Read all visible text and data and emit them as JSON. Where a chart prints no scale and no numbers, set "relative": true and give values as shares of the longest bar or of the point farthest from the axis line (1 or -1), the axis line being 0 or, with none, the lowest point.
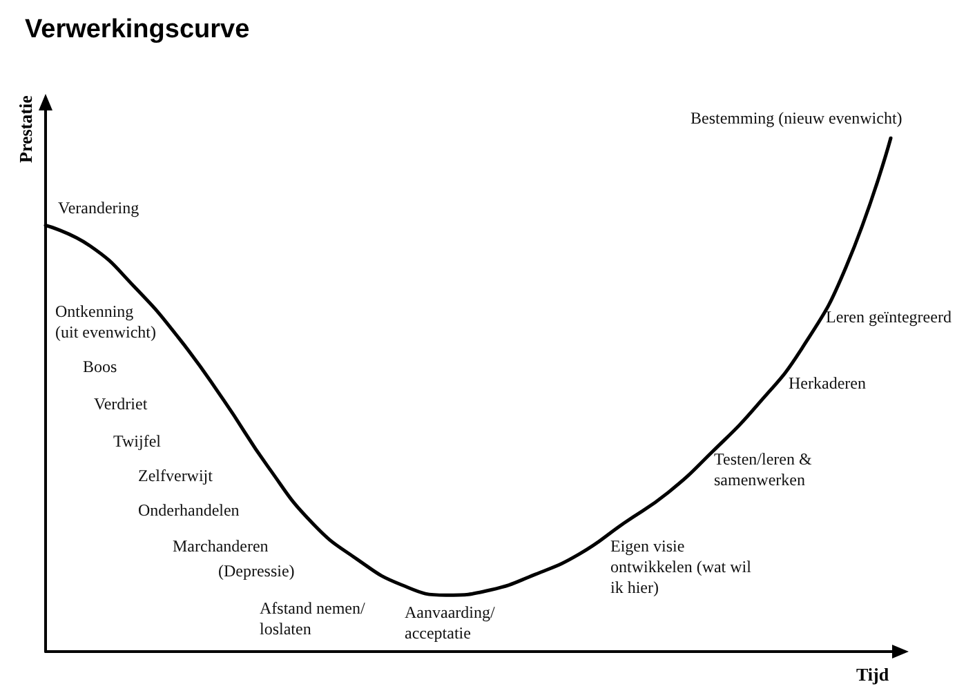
{
  "chart_data": {
    "type": "line",
    "title": "Verwerkingscurve",
    "xlabel": "Tijd",
    "ylabel": "Prestatie",
    "relative": true,
    "color": "#000000",
    "marker": "none",
    "grid": false,
    "categories": [
      null,
      null,
      null,
      null,
      null,
      null,
      null,
      null,
      null,
      null,
      null,
      null,
      null,
      null,
      null,
      null,
      null,
      null,
      null,
      null
    ],
    "values": [
      0.83,
      0.79,
      0.71,
      0.61,
      0.49,
      0.36,
      0.25,
      0.18,
      0.13,
      0.11,
      0.12,
      0.15,
      0.19,
      0.25,
      0.31,
      0.39,
      0.48,
      0.59,
      0.75,
      1
    ],
    "annotations": [
      "Verandering",
      "Ontkenning\n(uit evenwicht)",
      "Boos",
      "Verdriet",
      "Twijfel",
      "Zelfverwijt",
      "Onderhandelen",
      "Marchanderen",
      "(Depressie)",
      "Afstand nemen/\nloslaten",
      "Aanvaarding/\nacceptatie",
      "Eigen visie\nontwikkelen (wat wil\nik hier)",
      "Testen/leren &\nsamenwerken",
      "Herkaderen",
      "Leren geïntegreerd",
      "Bestemming (nieuw evenwicht)"
    ]
  }
}
